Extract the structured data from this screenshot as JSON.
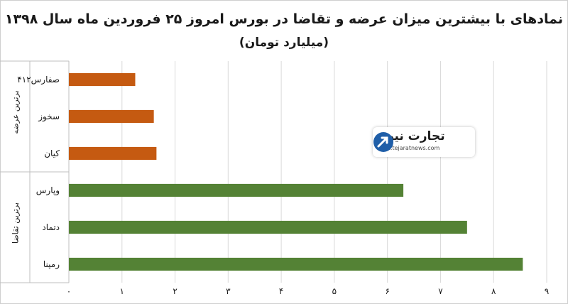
{
  "title": "نمادهای با بیشترین میزان عرضه و تقاضا در بورس امروز ۲۵ فروردین ماه سال ۱۳۹۸",
  "subtitle": "(میلیارد تومان)",
  "group_labels": {
    "supply": "برترین عرضه",
    "demand": "برترین تقاضا"
  },
  "watermark": {
    "brand": "تجارت نیوز",
    "url": "www.tejaratnews.com"
  },
  "chart_data": {
    "type": "bar",
    "orientation": "horizontal",
    "title": "نمادهای با بیشترین میزان عرضه و تقاضا در بورس امروز ۲۵ فروردین ماه سال ۱۳۹۸",
    "subtitle": "(میلیارد تومان)",
    "categories": [
      "صفارس۴۱۲",
      "سخوز",
      "کیان",
      "وپارس",
      "دتماد",
      "رمپنا"
    ],
    "values": [
      1.25,
      1.6,
      1.65,
      6.3,
      7.5,
      8.55
    ],
    "groups": [
      {
        "label": "برترین عرضه",
        "categories": [
          "صفارس۴۱۲",
          "سخوز",
          "کیان"
        ],
        "color": "#c55a11"
      },
      {
        "label": "برترین تقاضا",
        "categories": [
          "وپارس",
          "دتماد",
          "رمپنا"
        ],
        "color": "#548235"
      }
    ],
    "xlim": [
      0,
      9
    ],
    "xticks": [
      "۰",
      "۱",
      "۲",
      "۳",
      "۴",
      "۵",
      "۶",
      "۷",
      "۸",
      "۹"
    ],
    "grid": true,
    "legend": "none"
  }
}
